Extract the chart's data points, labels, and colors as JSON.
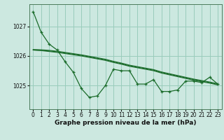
{
  "bg_color": "#cce8e0",
  "plot_bg_color": "#cce8e0",
  "grid_color": "#99ccbb",
  "line_color": "#1a6b2a",
  "xlabel": "Graphe pression niveau de la mer (hPa)",
  "ylim_min": 1024.2,
  "ylim_max": 1027.75,
  "xlim_min": -0.5,
  "xlim_max": 23.5,
  "yticks": [
    1025,
    1026,
    1027
  ],
  "xticks": [
    0,
    1,
    2,
    3,
    4,
    5,
    6,
    7,
    8,
    9,
    10,
    11,
    12,
    13,
    14,
    15,
    16,
    17,
    18,
    19,
    20,
    21,
    22,
    23
  ],
  "main_series": [
    1027.5,
    1026.8,
    1026.4,
    1026.2,
    1025.8,
    1025.45,
    1024.9,
    1024.6,
    1024.65,
    1025.0,
    1025.55,
    1025.5,
    1025.5,
    1025.05,
    1025.05,
    1025.2,
    1024.8,
    1024.8,
    1024.85,
    1025.15,
    1025.15,
    1025.1,
    1025.28,
    1025.05
  ],
  "line1_series": [
    1026.2,
    1026.18,
    1026.15,
    1026.12,
    1026.08,
    1026.04,
    1026.0,
    1025.95,
    1025.9,
    1025.85,
    1025.78,
    1025.72,
    1025.65,
    1025.6,
    1025.55,
    1025.5,
    1025.42,
    1025.36,
    1025.3,
    1025.24,
    1025.18,
    1025.13,
    1025.08,
    1025.02
  ],
  "line2_series": [
    1026.2,
    1026.19,
    1026.17,
    1026.14,
    1026.1,
    1026.06,
    1026.02,
    1025.97,
    1025.92,
    1025.87,
    1025.8,
    1025.74,
    1025.67,
    1025.62,
    1025.57,
    1025.52,
    1025.44,
    1025.38,
    1025.32,
    1025.26,
    1025.2,
    1025.15,
    1025.1,
    1025.04
  ],
  "line3_series": [
    1026.22,
    1026.21,
    1026.19,
    1026.16,
    1026.12,
    1026.08,
    1026.04,
    1025.99,
    1025.94,
    1025.89,
    1025.82,
    1025.76,
    1025.69,
    1025.64,
    1025.59,
    1025.54,
    1025.46,
    1025.4,
    1025.34,
    1025.28,
    1025.22,
    1025.17,
    1025.12,
    1025.06
  ],
  "tick_fontsize": 5.5,
  "xlabel_fontsize": 6.5
}
